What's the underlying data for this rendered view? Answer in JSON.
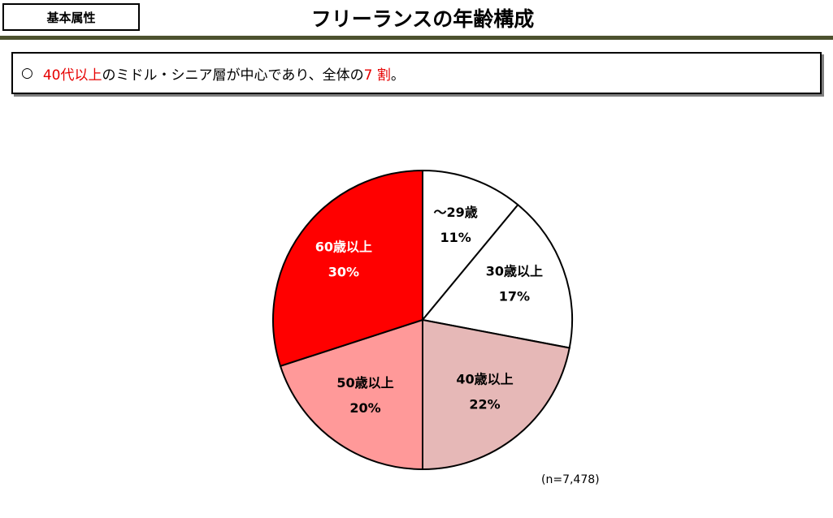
{
  "header": {
    "tag": "基本属性",
    "title": "フリーランスの年齢構成"
  },
  "summary": {
    "bullet": "○",
    "highlight1": "40代以上",
    "text1": "のミドル・シニア層が中心であり、全体の",
    "highlight2": "7 割",
    "text2": "。",
    "highlight_color": "#e60000"
  },
  "chart_data": {
    "type": "pie",
    "slices": [
      {
        "label": "～29歳",
        "value": 11,
        "value_label": "11%",
        "color": "#ffffff",
        "text_color": "#000000"
      },
      {
        "label": "30歳以上",
        "value": 17,
        "value_label": "17%",
        "color": "#ffffff",
        "text_color": "#000000"
      },
      {
        "label": "40歳以上",
        "value": 22,
        "value_label": "22%",
        "color": "#e6b8b7",
        "text_color": "#000000"
      },
      {
        "label": "50歳以上",
        "value": 20,
        "value_label": "20%",
        "color": "#ff9999",
        "text_color": "#000000"
      },
      {
        "label": "60歳以上",
        "value": 30,
        "value_label": "30%",
        "color": "#ff0000",
        "text_color": "#ffffff"
      }
    ],
    "start": "12 o'clock",
    "direction": "clockwise",
    "note": "(n=7,478)"
  }
}
